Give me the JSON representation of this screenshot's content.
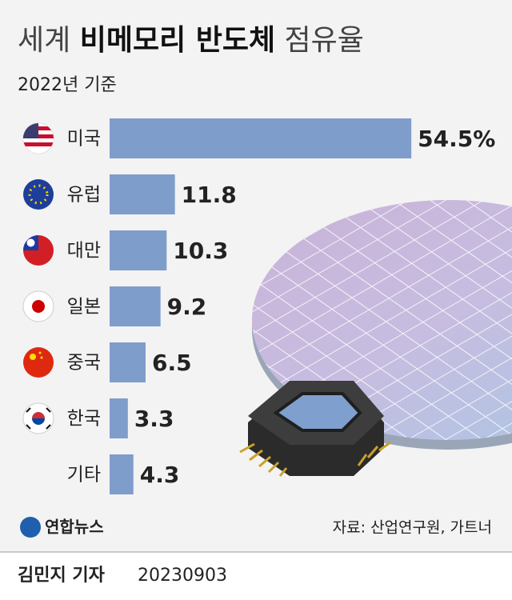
{
  "chart_data": {
    "type": "bar",
    "orientation": "horizontal",
    "title_parts": [
      "세계",
      "비메모리 반도체",
      "점유율"
    ],
    "subtitle": "2022년 기준",
    "categories": [
      "미국",
      "유럽",
      "대만",
      "일본",
      "중국",
      "한국",
      "기타"
    ],
    "values": [
      54.5,
      11.8,
      10.3,
      9.2,
      6.5,
      3.3,
      4.3
    ],
    "value_labels": [
      "54.5%",
      "11.8",
      "10.3",
      "9.2",
      "6.5",
      "3.3",
      "4.3"
    ],
    "color": "#7f9dcb"
  },
  "footer": {
    "logo": "연합뉴스",
    "source": "자료: 산업연구원, 가트너",
    "reporter": "김민지 기자",
    "date": "20230903"
  }
}
